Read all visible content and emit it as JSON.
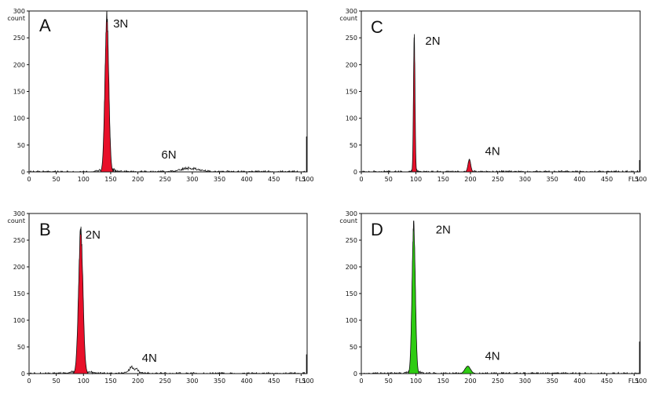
{
  "chart_data": [
    {
      "type": "area",
      "panel_label": "A",
      "fill_color": "#e8102a",
      "ylabel": "count",
      "xlabel_end": "FL1",
      "xlim": [
        0,
        511
      ],
      "ylim": [
        0,
        300
      ],
      "x_ticks": [
        "0",
        "50",
        "100",
        "150",
        "200",
        "250",
        "300",
        "350",
        "400",
        "450",
        "500"
      ],
      "y_ticks": [
        "0",
        "50",
        "100",
        "150",
        "200",
        "250",
        "300"
      ],
      "peaks": [
        {
          "label": "3N",
          "center": 143,
          "height": 290,
          "sigma": 3.5,
          "filled": true
        },
        {
          "label": "6N",
          "center": 295,
          "height": 7,
          "sigma": 16,
          "filled": false
        }
      ],
      "edge_spike": {
        "x": 510,
        "height": 66
      }
    },
    {
      "type": "area",
      "panel_label": "B",
      "fill_color": "#e8102a",
      "ylabel": "count",
      "xlabel_end": "FL1",
      "xlim": [
        0,
        511
      ],
      "ylim": [
        0,
        300
      ],
      "x_ticks": [
        "0",
        "50",
        "100",
        "150",
        "200",
        "250",
        "300",
        "350",
        "400",
        "450",
        "500"
      ],
      "y_ticks": [
        "0",
        "50",
        "100",
        "150",
        "200",
        "250",
        "300"
      ],
      "peaks": [
        {
          "label": "2N",
          "center": 95,
          "height": 268,
          "sigma": 4,
          "filled": true
        },
        {
          "label": "4N",
          "center": 190,
          "height": 10,
          "sigma": 8,
          "filled": false
        }
      ],
      "edge_spike": {
        "x": 510,
        "height": 36
      }
    },
    {
      "type": "area",
      "panel_label": "C",
      "fill_color": "#e8102a",
      "ylabel": "count",
      "xlabel_end": "FL1",
      "xlim": [
        0,
        511
      ],
      "ylim": [
        0,
        300
      ],
      "x_ticks": [
        "0",
        "50",
        "100",
        "150",
        "200",
        "250",
        "300",
        "350",
        "400",
        "450",
        "500"
      ],
      "y_ticks": [
        "0",
        "50",
        "100",
        "150",
        "200",
        "250",
        "300"
      ],
      "peaks": [
        {
          "label": "2N",
          "center": 97,
          "height": 252,
          "sigma": 1.4,
          "filled": true
        },
        {
          "label": "4N",
          "center": 198,
          "height": 23,
          "sigma": 2.5,
          "filled": true
        }
      ],
      "edge_spike": {
        "x": 510,
        "height": 22
      }
    },
    {
      "type": "area",
      "panel_label": "D",
      "fill_color": "#2ecc12",
      "ylabel": "count",
      "xlabel_end": "FL1",
      "xlim": [
        0,
        511
      ],
      "ylim": [
        0,
        300
      ],
      "x_ticks": [
        "0",
        "50",
        "100",
        "150",
        "200",
        "250",
        "300",
        "350",
        "400",
        "450",
        "500"
      ],
      "y_ticks": [
        "0",
        "50",
        "100",
        "150",
        "200",
        "250",
        "300"
      ],
      "peaks": [
        {
          "label": "2N",
          "center": 96,
          "height": 277,
          "sigma": 3,
          "filled": true
        },
        {
          "label": "4N",
          "center": 195,
          "height": 14,
          "sigma": 5,
          "filled": true
        }
      ],
      "edge_spike": {
        "x": 510,
        "height": 60
      }
    }
  ]
}
